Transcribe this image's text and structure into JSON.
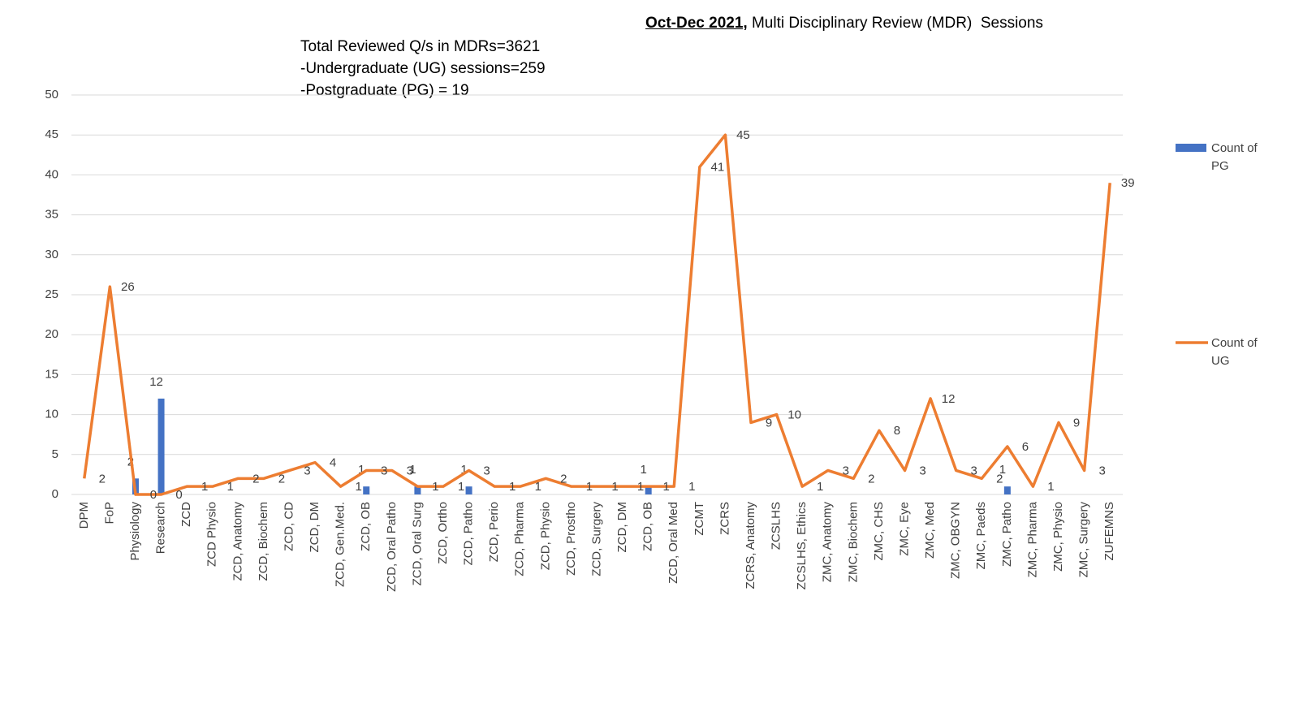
{
  "chart_data": {
    "type": "bar-line",
    "title_bold": "Oct-Dec 2021,",
    "title": " Multi Disciplinary Review (MDR)  Sessions",
    "annotations": [
      "Total Reviewed Q/s in MDRs=3621",
      "-Undergraduate (UG) sessions=259",
      "-Postgraduate (PG) = 19"
    ],
    "categories": [
      "DPM",
      "FoP",
      "Physiology",
      "Research",
      "ZCD",
      "ZCD Physio",
      "ZCD, Anatomy",
      "ZCD, Biochem",
      "ZCD, CD",
      "ZCD, DM",
      "ZCD, Gen.Med.",
      "ZCD, OB",
      "ZCD, Oral Patho",
      "ZCD, Oral Surg",
      "ZCD, Ortho",
      "ZCD, Patho",
      "ZCD, Perio",
      "ZCD, Pharma",
      "ZCD, Physio",
      "ZCD, Prostho",
      "ZCD, Surgery",
      "ZCD, DM",
      "ZCD, OB",
      "ZCD, Oral Med",
      "ZCMT",
      "ZCRS",
      "ZCRS, Anatomy",
      "ZCSLHS",
      "ZCSLHS, Ethics",
      "ZMC, Anatomy",
      "ZMC, Biochem",
      "ZMC, CHS",
      "ZMC, Eye",
      "ZMC, Med",
      "ZMC, OBGYN",
      "ZMC, Paeds",
      "ZMC, Patho",
      "ZMC, Pharma",
      "ZMC, Physio",
      "ZMC, Surgery",
      "ZUFEMNS"
    ],
    "series": [
      {
        "name": "Count of PG",
        "type": "bar",
        "color": "#4472c4",
        "values": [
          null,
          null,
          2,
          12,
          null,
          null,
          null,
          null,
          null,
          null,
          null,
          1,
          null,
          1,
          null,
          1,
          null,
          null,
          null,
          null,
          null,
          null,
          1,
          null,
          null,
          null,
          null,
          null,
          null,
          null,
          null,
          null,
          null,
          null,
          null,
          null,
          1,
          null,
          null,
          null,
          null
        ]
      },
      {
        "name": "Count of UG",
        "type": "line",
        "color": "#ed7d31",
        "values": [
          2,
          26,
          0,
          0,
          1,
          1,
          2,
          2,
          3,
          4,
          1,
          3,
          3,
          1,
          1,
          3,
          1,
          1,
          2,
          1,
          1,
          1,
          1,
          1,
          41,
          45,
          9,
          10,
          1,
          3,
          2,
          8,
          3,
          12,
          3,
          2,
          6,
          1,
          9,
          3,
          39
        ]
      }
    ],
    "ylim": [
      0,
      50
    ],
    "yticks": [
      0,
      5,
      10,
      15,
      20,
      25,
      30,
      35,
      40,
      45,
      50
    ],
    "grid": true
  }
}
